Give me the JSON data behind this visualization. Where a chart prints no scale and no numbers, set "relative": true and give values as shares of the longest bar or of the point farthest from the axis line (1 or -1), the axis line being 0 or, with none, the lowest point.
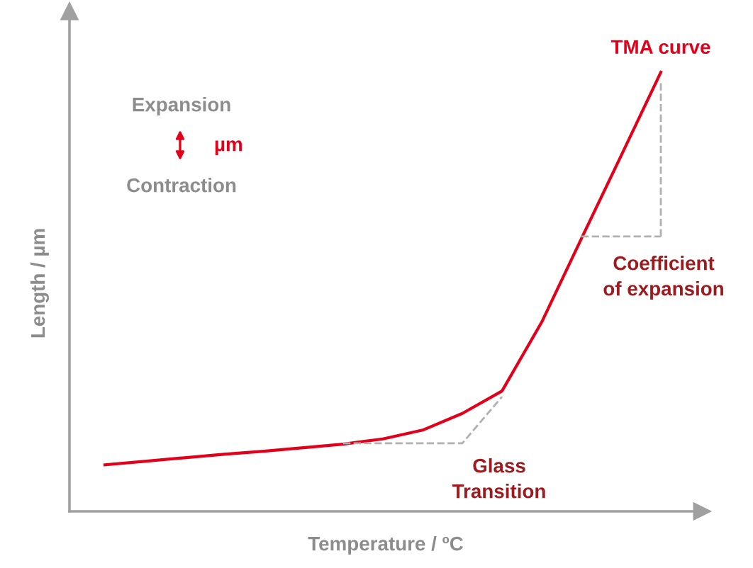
{
  "chart_data": {
    "type": "line",
    "relative": true,
    "xlabel": "Temperature / ºC",
    "ylabel": "Length / µm",
    "categories": [
      null,
      null,
      null,
      null,
      null,
      null,
      null,
      null,
      null,
      null,
      null,
      null,
      null,
      null,
      null
    ],
    "series": [
      {
        "name": "TMA curve",
        "color": "#e2001a",
        "values": [
          0.106,
          0.114,
          0.122,
          0.13,
          0.137,
          0.145,
          0.153,
          0.165,
          0.185,
          0.223,
          0.274,
          0.431,
          0.621,
          0.81,
          1.0
        ]
      },
      {
        "color": "#b0b0b0",
        "line_style": "dashed",
        "values": [
          null,
          null,
          null,
          null,
          null,
          null,
          0.155,
          0.155,
          0.155,
          0.155,
          0.261,
          null,
          null,
          null,
          null
        ]
      },
      {
        "color": "#b0b0b0",
        "line_style": "dashed",
        "values": [
          null,
          null,
          null,
          null,
          null,
          null,
          null,
          null,
          null,
          null,
          null,
          null,
          0.626,
          0.626,
          0.626
        ]
      }
    ],
    "annotations": [
      "Expansion",
      "µm",
      "Contraction",
      "Glass\nTransition",
      "Coefficient\nof expansion"
    ],
    "legend": false,
    "marker": "none",
    "line_style": "solid"
  }
}
